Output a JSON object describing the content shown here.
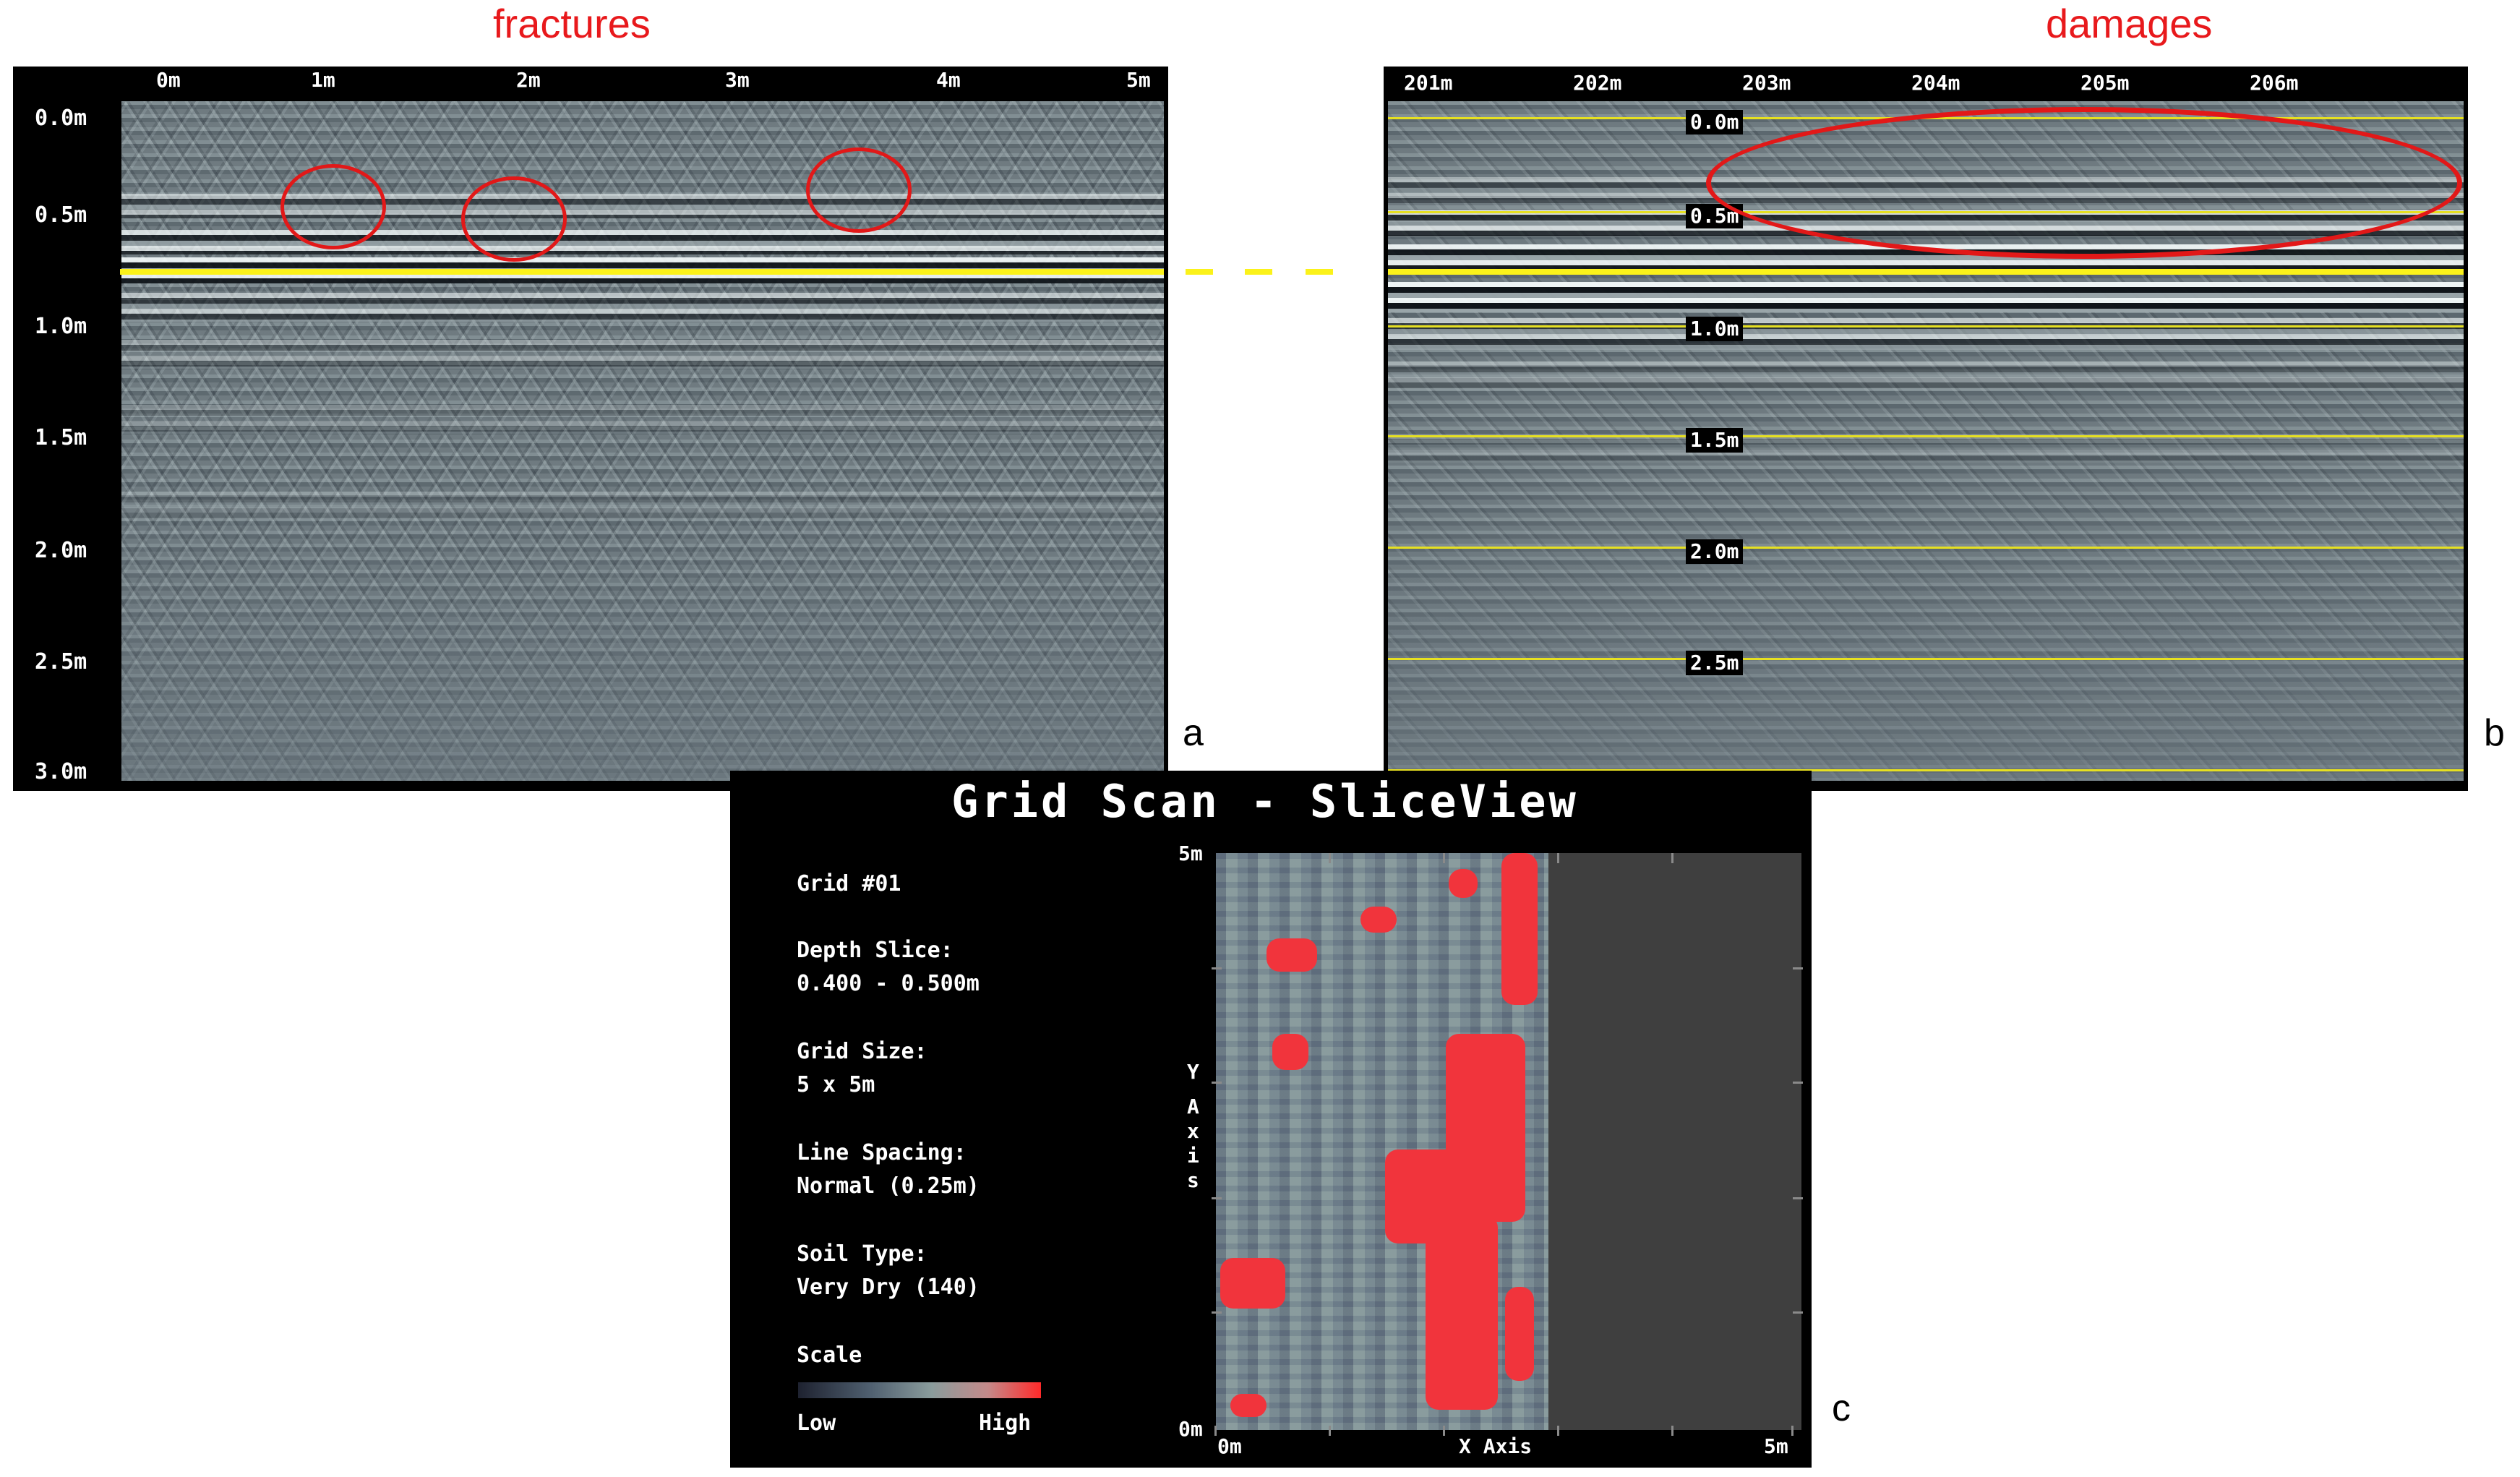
{
  "captions": {
    "left": "fractures",
    "right": "damages"
  },
  "panel_labels": {
    "a": "a",
    "b": "b",
    "c": "c"
  },
  "panel_a": {
    "x_ticks": [
      "0m",
      "1m",
      "2m",
      "3m",
      "4m",
      "5m"
    ],
    "y_ticks": [
      "0.0m",
      "0.5m",
      "1.0m",
      "1.5m",
      "2.0m",
      "2.5m",
      "3.0m"
    ]
  },
  "panel_b": {
    "x_ticks": [
      "201m",
      "202m",
      "203m",
      "204m",
      "205m",
      "206m"
    ],
    "depth_tags": [
      "0.0m",
      "0.5m",
      "1.0m",
      "1.5m",
      "2.0m",
      "2.5m"
    ]
  },
  "panel_c": {
    "title": "Grid Scan - SliceView",
    "grid": "Grid #01",
    "depth_slice_label": "Depth Slice:",
    "depth_slice_value": "0.400 - 0.500m",
    "grid_size_label": "Grid Size:",
    "grid_size_value": "5 x 5m",
    "line_spacing_label": "Line Spacing:",
    "line_spacing_value": "Normal (0.25m)",
    "soil_type_label": "Soil Type:",
    "soil_type_value": "Very Dry (140)",
    "scale_label": "Scale",
    "scale_low": "Low",
    "scale_high": "High",
    "y_top": "5m",
    "y_bottom": "0m",
    "y_axis_letters": [
      "Y",
      "A",
      "x",
      "i",
      "s"
    ],
    "x_left": "0m",
    "x_axis_label": "X Axis",
    "x_right": "5m"
  },
  "colors": {
    "annotation_red": "#e21818",
    "reference_yellow": "#fbf21a",
    "depth_line_yellow": "#e6e021",
    "slice_high": "#f1343c"
  }
}
